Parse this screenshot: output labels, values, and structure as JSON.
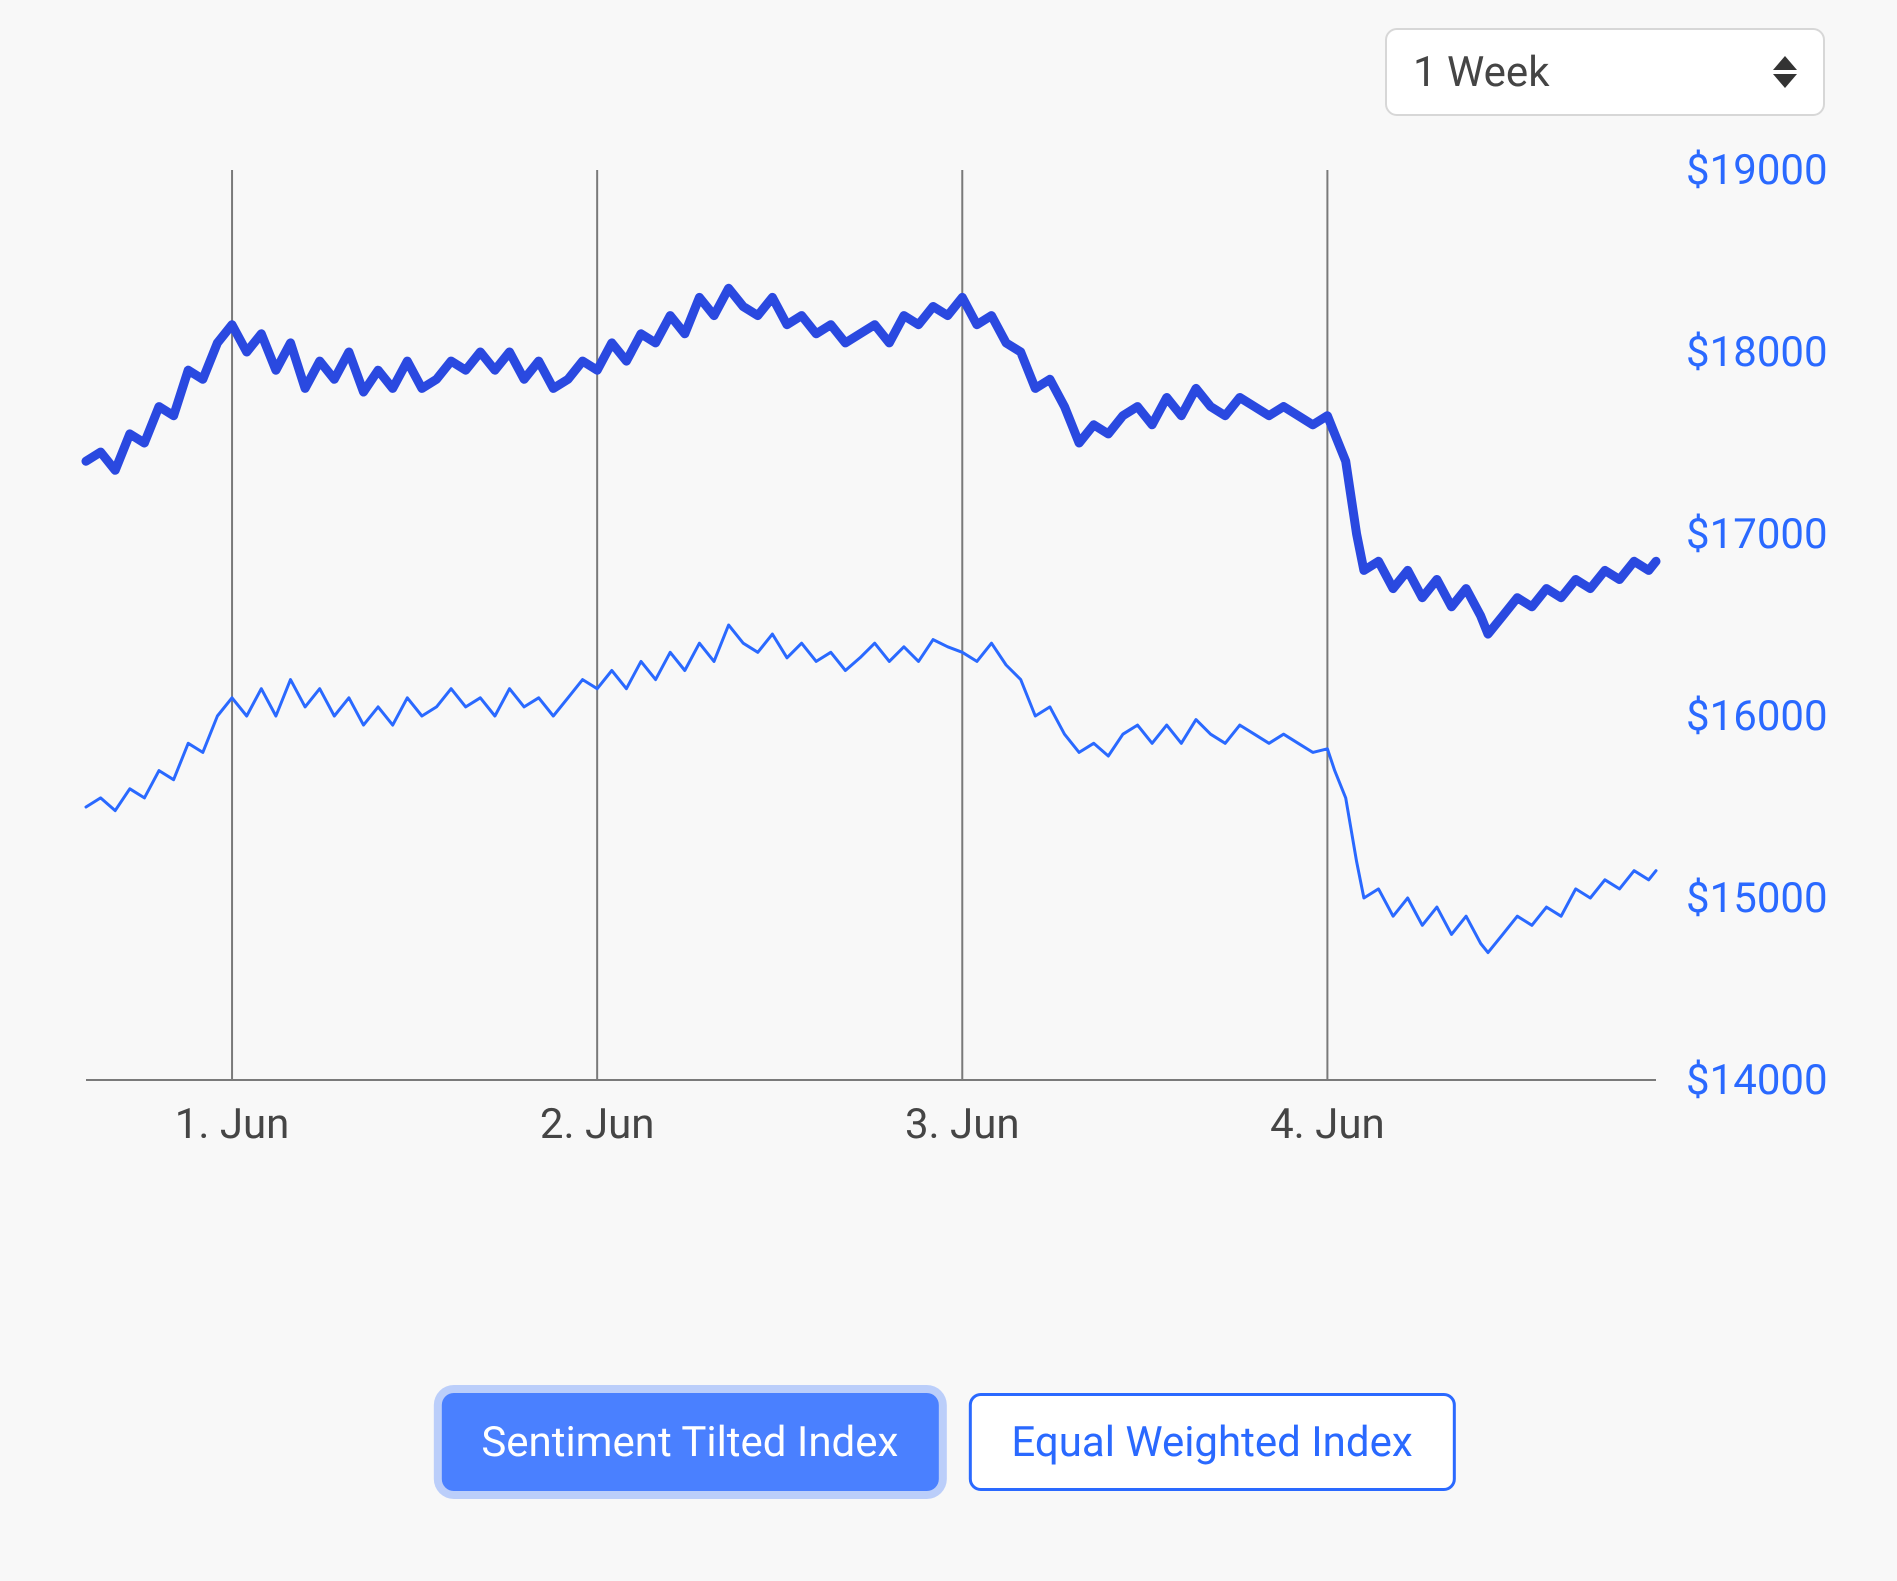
{
  "dropdown": {
    "selected": "1 Week"
  },
  "chart": {
    "type": "line",
    "background_color": "#f8f8f8",
    "axis_color": "#7a7a7a",
    "grid_color": "#7a7a7a",
    "y_label_color": "#2a69ff",
    "x_label_color": "#454545",
    "y_label_fontsize": 42,
    "x_label_fontsize": 42,
    "ylim": [
      14000,
      19000
    ],
    "y_ticks": [
      14000,
      15000,
      16000,
      17000,
      18000,
      19000
    ],
    "y_tick_labels": [
      "$14000",
      "$15000",
      "$16000",
      "$17000",
      "$18000",
      "$19000"
    ],
    "x_ticks": [
      1,
      2,
      3,
      4
    ],
    "x_tick_labels": [
      "1. Jun",
      "2. Jun",
      "3. Jun",
      "4. Jun"
    ],
    "x_range": [
      0.6,
      4.9
    ],
    "gridlines_at_x": [
      1,
      2,
      3,
      4
    ],
    "series": [
      {
        "name": "Sentiment Tilted Index",
        "color": "#2a49e0",
        "line_width": 9,
        "data": [
          [
            0.6,
            17400
          ],
          [
            0.64,
            17450
          ],
          [
            0.68,
            17350
          ],
          [
            0.72,
            17550
          ],
          [
            0.76,
            17500
          ],
          [
            0.8,
            17700
          ],
          [
            0.84,
            17650
          ],
          [
            0.88,
            17900
          ],
          [
            0.92,
            17850
          ],
          [
            0.96,
            18050
          ],
          [
            1.0,
            18150
          ],
          [
            1.04,
            18000
          ],
          [
            1.08,
            18100
          ],
          [
            1.12,
            17900
          ],
          [
            1.16,
            18050
          ],
          [
            1.2,
            17800
          ],
          [
            1.24,
            17950
          ],
          [
            1.28,
            17850
          ],
          [
            1.32,
            18000
          ],
          [
            1.36,
            17780
          ],
          [
            1.4,
            17900
          ],
          [
            1.44,
            17800
          ],
          [
            1.48,
            17950
          ],
          [
            1.52,
            17800
          ],
          [
            1.56,
            17850
          ],
          [
            1.6,
            17950
          ],
          [
            1.64,
            17900
          ],
          [
            1.68,
            18000
          ],
          [
            1.72,
            17900
          ],
          [
            1.76,
            18000
          ],
          [
            1.8,
            17850
          ],
          [
            1.84,
            17950
          ],
          [
            1.88,
            17800
          ],
          [
            1.92,
            17850
          ],
          [
            1.96,
            17950
          ],
          [
            2.0,
            17900
          ],
          [
            2.04,
            18050
          ],
          [
            2.08,
            17950
          ],
          [
            2.12,
            18100
          ],
          [
            2.16,
            18050
          ],
          [
            2.2,
            18200
          ],
          [
            2.24,
            18100
          ],
          [
            2.28,
            18300
          ],
          [
            2.32,
            18200
          ],
          [
            2.36,
            18350
          ],
          [
            2.4,
            18250
          ],
          [
            2.44,
            18200
          ],
          [
            2.48,
            18300
          ],
          [
            2.52,
            18150
          ],
          [
            2.56,
            18200
          ],
          [
            2.6,
            18100
          ],
          [
            2.64,
            18150
          ],
          [
            2.68,
            18050
          ],
          [
            2.72,
            18100
          ],
          [
            2.76,
            18150
          ],
          [
            2.8,
            18050
          ],
          [
            2.84,
            18200
          ],
          [
            2.88,
            18150
          ],
          [
            2.92,
            18250
          ],
          [
            2.96,
            18200
          ],
          [
            3.0,
            18300
          ],
          [
            3.04,
            18150
          ],
          [
            3.08,
            18200
          ],
          [
            3.12,
            18050
          ],
          [
            3.16,
            18000
          ],
          [
            3.2,
            17800
          ],
          [
            3.24,
            17850
          ],
          [
            3.28,
            17700
          ],
          [
            3.32,
            17500
          ],
          [
            3.36,
            17600
          ],
          [
            3.4,
            17550
          ],
          [
            3.44,
            17650
          ],
          [
            3.48,
            17700
          ],
          [
            3.52,
            17600
          ],
          [
            3.56,
            17750
          ],
          [
            3.6,
            17650
          ],
          [
            3.64,
            17800
          ],
          [
            3.68,
            17700
          ],
          [
            3.72,
            17650
          ],
          [
            3.76,
            17750
          ],
          [
            3.8,
            17700
          ],
          [
            3.84,
            17650
          ],
          [
            3.88,
            17700
          ],
          [
            3.92,
            17650
          ],
          [
            3.96,
            17600
          ],
          [
            4.0,
            17650
          ],
          [
            4.02,
            17550
          ],
          [
            4.05,
            17400
          ],
          [
            4.08,
            17000
          ],
          [
            4.1,
            16800
          ],
          [
            4.14,
            16850
          ],
          [
            4.18,
            16700
          ],
          [
            4.22,
            16800
          ],
          [
            4.26,
            16650
          ],
          [
            4.3,
            16750
          ],
          [
            4.34,
            16600
          ],
          [
            4.38,
            16700
          ],
          [
            4.42,
            16550
          ],
          [
            4.44,
            16450
          ],
          [
            4.48,
            16550
          ],
          [
            4.52,
            16650
          ],
          [
            4.56,
            16600
          ],
          [
            4.6,
            16700
          ],
          [
            4.64,
            16650
          ],
          [
            4.68,
            16750
          ],
          [
            4.72,
            16700
          ],
          [
            4.76,
            16800
          ],
          [
            4.8,
            16750
          ],
          [
            4.84,
            16850
          ],
          [
            4.88,
            16800
          ],
          [
            4.9,
            16850
          ]
        ]
      },
      {
        "name": "Equal Weighted Index",
        "color": "#2a69ff",
        "line_width": 3,
        "data": [
          [
            0.6,
            15500
          ],
          [
            0.64,
            15550
          ],
          [
            0.68,
            15480
          ],
          [
            0.72,
            15600
          ],
          [
            0.76,
            15550
          ],
          [
            0.8,
            15700
          ],
          [
            0.84,
            15650
          ],
          [
            0.88,
            15850
          ],
          [
            0.92,
            15800
          ],
          [
            0.96,
            16000
          ],
          [
            1.0,
            16100
          ],
          [
            1.04,
            16000
          ],
          [
            1.08,
            16150
          ],
          [
            1.12,
            16000
          ],
          [
            1.16,
            16200
          ],
          [
            1.2,
            16050
          ],
          [
            1.24,
            16150
          ],
          [
            1.28,
            16000
          ],
          [
            1.32,
            16100
          ],
          [
            1.36,
            15950
          ],
          [
            1.4,
            16050
          ],
          [
            1.44,
            15950
          ],
          [
            1.48,
            16100
          ],
          [
            1.52,
            16000
          ],
          [
            1.56,
            16050
          ],
          [
            1.6,
            16150
          ],
          [
            1.64,
            16050
          ],
          [
            1.68,
            16100
          ],
          [
            1.72,
            16000
          ],
          [
            1.76,
            16150
          ],
          [
            1.8,
            16050
          ],
          [
            1.84,
            16100
          ],
          [
            1.88,
            16000
          ],
          [
            1.92,
            16100
          ],
          [
            1.96,
            16200
          ],
          [
            2.0,
            16150
          ],
          [
            2.04,
            16250
          ],
          [
            2.08,
            16150
          ],
          [
            2.12,
            16300
          ],
          [
            2.16,
            16200
          ],
          [
            2.2,
            16350
          ],
          [
            2.24,
            16250
          ],
          [
            2.28,
            16400
          ],
          [
            2.32,
            16300
          ],
          [
            2.36,
            16500
          ],
          [
            2.4,
            16400
          ],
          [
            2.44,
            16350
          ],
          [
            2.48,
            16450
          ],
          [
            2.52,
            16320
          ],
          [
            2.56,
            16400
          ],
          [
            2.6,
            16300
          ],
          [
            2.64,
            16350
          ],
          [
            2.68,
            16250
          ],
          [
            2.72,
            16320
          ],
          [
            2.76,
            16400
          ],
          [
            2.8,
            16300
          ],
          [
            2.84,
            16380
          ],
          [
            2.88,
            16300
          ],
          [
            2.92,
            16420
          ],
          [
            2.96,
            16380
          ],
          [
            3.0,
            16350
          ],
          [
            3.04,
            16300
          ],
          [
            3.08,
            16400
          ],
          [
            3.12,
            16280
          ],
          [
            3.16,
            16200
          ],
          [
            3.2,
            16000
          ],
          [
            3.24,
            16050
          ],
          [
            3.28,
            15900
          ],
          [
            3.32,
            15800
          ],
          [
            3.36,
            15850
          ],
          [
            3.4,
            15780
          ],
          [
            3.44,
            15900
          ],
          [
            3.48,
            15950
          ],
          [
            3.52,
            15850
          ],
          [
            3.56,
            15950
          ],
          [
            3.6,
            15850
          ],
          [
            3.64,
            15980
          ],
          [
            3.68,
            15900
          ],
          [
            3.72,
            15850
          ],
          [
            3.76,
            15950
          ],
          [
            3.8,
            15900
          ],
          [
            3.84,
            15850
          ],
          [
            3.88,
            15900
          ],
          [
            3.92,
            15850
          ],
          [
            3.96,
            15800
          ],
          [
            4.0,
            15820
          ],
          [
            4.02,
            15700
          ],
          [
            4.05,
            15550
          ],
          [
            4.08,
            15200
          ],
          [
            4.1,
            15000
          ],
          [
            4.14,
            15050
          ],
          [
            4.18,
            14900
          ],
          [
            4.22,
            15000
          ],
          [
            4.26,
            14850
          ],
          [
            4.3,
            14950
          ],
          [
            4.34,
            14800
          ],
          [
            4.38,
            14900
          ],
          [
            4.42,
            14750
          ],
          [
            4.44,
            14700
          ],
          [
            4.48,
            14800
          ],
          [
            4.52,
            14900
          ],
          [
            4.56,
            14850
          ],
          [
            4.6,
            14950
          ],
          [
            4.64,
            14900
          ],
          [
            4.68,
            15050
          ],
          [
            4.72,
            15000
          ],
          [
            4.76,
            15100
          ],
          [
            4.8,
            15050
          ],
          [
            4.84,
            15150
          ],
          [
            4.88,
            15100
          ],
          [
            4.9,
            15150
          ]
        ]
      }
    ]
  },
  "legend": {
    "items": [
      {
        "label": "Sentiment Tilted Index",
        "active": true
      },
      {
        "label": "Equal Weighted Index",
        "active": false
      }
    ],
    "active_bg": "#4a80ff",
    "active_fg": "#ffffff",
    "inactive_bg": "#ffffff",
    "inactive_fg": "#2a69ff",
    "inactive_border": "#2a69ff",
    "fontsize": 42
  }
}
